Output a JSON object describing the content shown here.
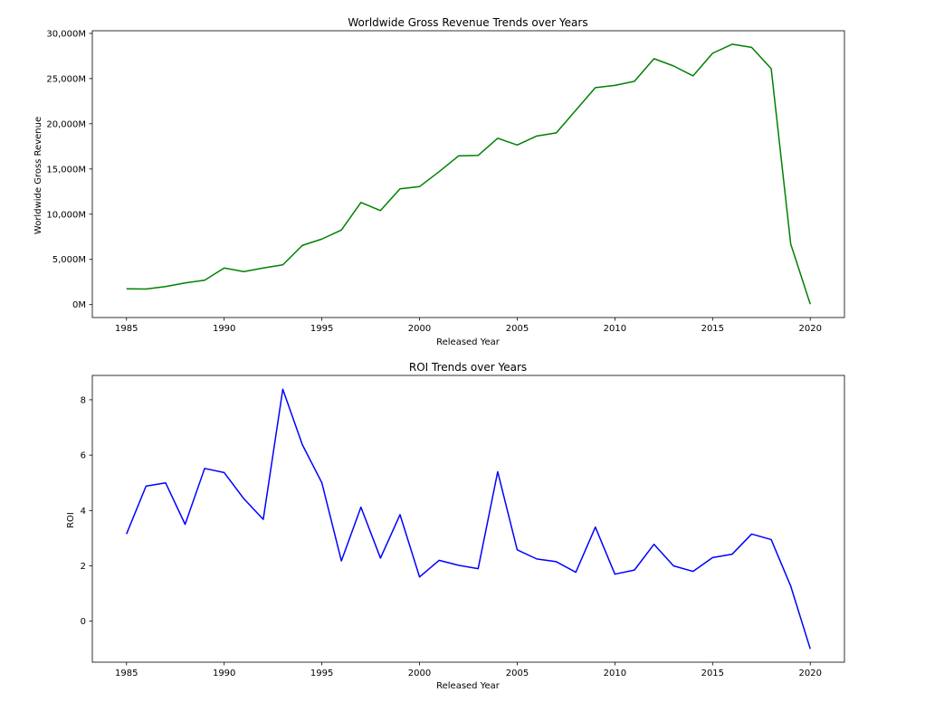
{
  "chart_data": [
    {
      "type": "line",
      "title": "Worldwide Gross Revenue Trends over Years",
      "xlabel": "Released Year",
      "ylabel": "Worldwide Gross Revenue",
      "xlim": [
        1983.25,
        2021.75
      ],
      "ylim": [
        -1430,
        30290
      ],
      "xticks": [
        1985,
        1990,
        1995,
        2000,
        2005,
        2010,
        2015,
        2020
      ],
      "xtick_labels": [
        "1985",
        "1990",
        "1995",
        "2000",
        "2005",
        "2010",
        "2015",
        "2020"
      ],
      "yticks": [
        0,
        5000,
        10000,
        15000,
        20000,
        25000,
        30000
      ],
      "ytick_labels": [
        "0M",
        "5,000M",
        "10,000M",
        "15,000M",
        "20,000M",
        "25,000M",
        "30,000M"
      ],
      "grid": false,
      "series": [
        {
          "color": "#008000",
          "x": [
            1985,
            1986,
            1987,
            1988,
            1989,
            1990,
            1991,
            1992,
            1993,
            1994,
            1995,
            1996,
            1997,
            1998,
            1999,
            2000,
            2001,
            2002,
            2003,
            2004,
            2005,
            2006,
            2007,
            2008,
            2009,
            2010,
            2011,
            2012,
            2013,
            2014,
            2015,
            2016,
            2017,
            2018,
            2019,
            2020
          ],
          "y": [
            1750,
            1720,
            2000,
            2400,
            2700,
            4050,
            3650,
            4050,
            4400,
            6550,
            7250,
            8250,
            11300,
            10400,
            12800,
            13050,
            14700,
            16450,
            16500,
            18400,
            17650,
            18650,
            19000,
            21500,
            24000,
            24250,
            24700,
            27200,
            26400,
            25300,
            27800,
            28800,
            28450,
            26100,
            6700,
            50
          ]
        }
      ]
    },
    {
      "type": "line",
      "title": "ROI Trends over Years",
      "xlabel": "Released Year",
      "ylabel": "ROI",
      "xlim": [
        1983.25,
        2021.75
      ],
      "ylim": [
        -1.48,
        8.88
      ],
      "xticks": [
        1985,
        1990,
        1995,
        2000,
        2005,
        2010,
        2015,
        2020
      ],
      "xtick_labels": [
        "1985",
        "1990",
        "1995",
        "2000",
        "2005",
        "2010",
        "2015",
        "2020"
      ],
      "yticks": [
        0,
        2,
        4,
        6,
        8
      ],
      "ytick_labels": [
        "0",
        "2",
        "4",
        "6",
        "8"
      ],
      "grid": false,
      "series": [
        {
          "color": "#0000ff",
          "x": [
            1985,
            1986,
            1987,
            1988,
            1989,
            1990,
            1991,
            1992,
            1993,
            1994,
            1995,
            1996,
            1997,
            1998,
            1999,
            2000,
            2001,
            2002,
            2003,
            2004,
            2005,
            2006,
            2007,
            2008,
            2009,
            2010,
            2011,
            2012,
            2013,
            2014,
            2015,
            2016,
            2017,
            2018,
            2019,
            2020
          ],
          "y": [
            3.15,
            4.88,
            5.0,
            3.5,
            5.52,
            5.37,
            4.43,
            3.68,
            8.38,
            6.38,
            5.0,
            2.18,
            4.12,
            2.28,
            3.85,
            1.6,
            2.2,
            2.02,
            1.9,
            5.4,
            2.58,
            2.25,
            2.15,
            1.77,
            3.4,
            1.7,
            1.85,
            2.78,
            2.0,
            1.8,
            2.3,
            2.42,
            3.15,
            2.95,
            1.27,
            -1.0
          ]
        }
      ]
    }
  ]
}
